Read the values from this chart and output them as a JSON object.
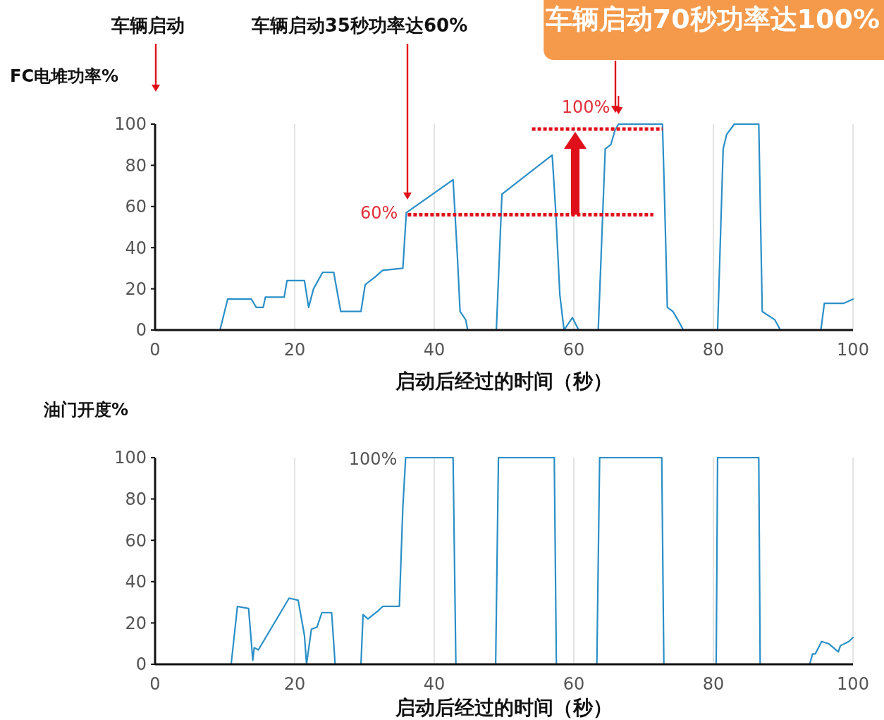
{
  "chart_data": [
    {
      "type": "line",
      "ylabel": "FC电堆功率%",
      "xlabel": "启动后经过的时间（秒）",
      "xlim": [
        0,
        100
      ],
      "xticks": [
        0,
        20,
        40,
        60,
        80,
        100
      ],
      "ylim": [
        0,
        100
      ],
      "yticks": [
        0,
        20,
        40,
        60,
        80,
        100
      ],
      "grid": "x",
      "marker": "none",
      "series": [
        {
          "color": "#2a8fc8",
          "line_style": "solid",
          "x": [
            0,
            9.3,
            10.4,
            13.8,
            14.5,
            15.5,
            15.8,
            18.5,
            18.9,
            21.4,
            22,
            22.7,
            24,
            25.6,
            26.6,
            29.5,
            30.1,
            31.6,
            32.6,
            35.5,
            36,
            42.7,
            43.3,
            43.7,
            44.5,
            44.8,
            48.9,
            49.7,
            56.9,
            57.4,
            58,
            58.6,
            59.8,
            60.7,
            63.5,
            64.5,
            65.3,
            65.9,
            66.4,
            72.7,
            73,
            73.4,
            74.2,
            74.9,
            75.7,
            80.6,
            81.4,
            81.9,
            83,
            86.5,
            87,
            87.9,
            88.8,
            89.6,
            95.4,
            95.9,
            98.7,
            100
          ],
          "values": [
            0,
            0,
            15,
            15,
            11,
            11,
            16,
            16,
            24,
            24,
            11,
            20,
            28,
            28,
            9,
            9,
            22,
            26,
            29,
            30,
            57,
            73,
            37,
            9,
            5,
            0,
            0,
            66,
            85,
            58,
            17,
            0,
            6,
            0,
            0,
            88,
            90,
            97,
            100,
            100,
            64,
            11,
            9,
            5,
            0,
            0,
            88,
            95,
            100,
            100,
            9,
            7,
            5,
            0,
            0,
            13,
            13,
            15
          ]
        },
        {
          "color": "#e0101a",
          "line_style": "dotted",
          "x": [
            36.2,
            71.4
          ],
          "values": [
            56,
            56
          ]
        },
        {
          "color": "#e0101a",
          "line_style": "dotted",
          "x": [
            54,
            72.7
          ],
          "values": [
            97.6,
            97.6
          ]
        }
      ],
      "annotations": [
        "车辆启动",
        "车辆启动35秒功率达60%",
        "车辆启动70秒功率达100%",
        {
          "text": "60%",
          "x": 36,
          "y": 57
        },
        {
          "text": "100%",
          "x": 66.4,
          "y": 100
        }
      ]
    },
    {
      "type": "line",
      "ylabel": "油门开度%",
      "xlabel": "启动后经过的时间（秒）",
      "xlim": [
        0,
        100
      ],
      "xticks": [
        0,
        20,
        40,
        60,
        80,
        100
      ],
      "ylim": [
        0,
        100
      ],
      "yticks": [
        0,
        20,
        40,
        60,
        80,
        100
      ],
      "grid": "x",
      "marker": "none",
      "series": [
        {
          "color": "#2a8fc8",
          "line_style": "solid",
          "x": [
            0,
            10.9,
            11.8,
            13.4,
            14,
            14.2,
            14.8,
            19.2,
            20.5,
            21.4,
            21.7,
            22.4,
            23.2,
            23.9,
            25.3,
            25.8,
            29.5,
            29.8,
            30.5,
            32,
            32.6,
            35,
            35.5,
            35.9,
            42.7,
            43.1,
            48.8,
            49.2,
            57.2,
            57.5,
            63.3,
            63.7,
            72.6,
            72.9,
            80.4,
            80.6,
            86.5,
            86.7,
            93.8,
            94.2,
            94.6,
            95.5,
            96.5,
            97.9,
            98.2,
            99.4,
            100
          ],
          "values": [
            0,
            0,
            28,
            27,
            2,
            8,
            7,
            32,
            31,
            14,
            0,
            17,
            18,
            25,
            25,
            0,
            0,
            24,
            22,
            26,
            28,
            28,
            76,
            100,
            100,
            0,
            0,
            100,
            100,
            0,
            0,
            100,
            100,
            0,
            0,
            100,
            100,
            0,
            0,
            5,
            5,
            11,
            10,
            6,
            9,
            11,
            13
          ]
        }
      ],
      "annotations": [
        {
          "text": "100%",
          "x": 35.9,
          "y": 100
        }
      ]
    }
  ]
}
